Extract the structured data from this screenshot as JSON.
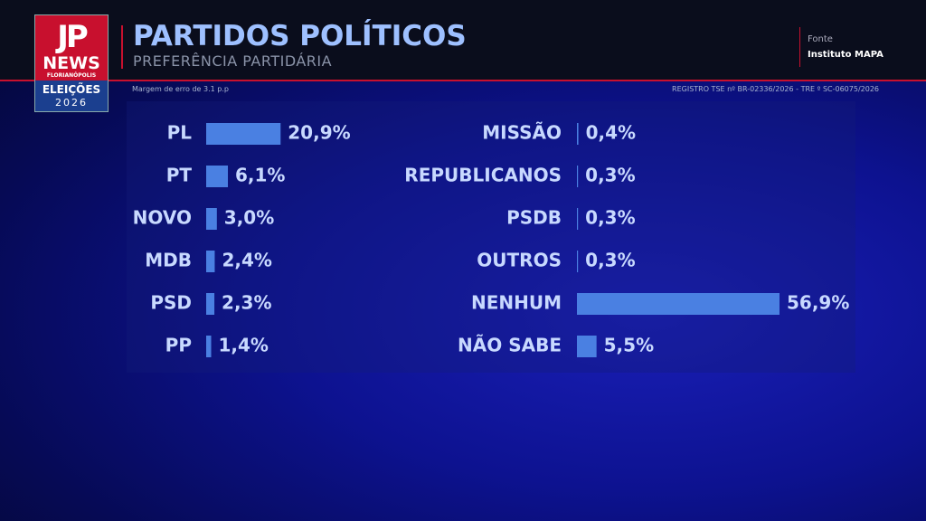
{
  "header": {
    "logo_mark": "JP",
    "logo_brand": "NEWS",
    "logo_city": "FLORIANÓPOLIS",
    "logo_event": "ELEIÇÕES",
    "logo_year": "2026",
    "title": "PARTIDOS POLÍTICOS",
    "subtitle": "PREFERÊNCIA PARTIDÁRIA",
    "source_label": "Fonte",
    "source": "Instituto MAPA",
    "margin": "Margem de erro de 3.1 p.p",
    "registry": "REGISTRO TSE nº BR-02336/2026 - TRE º SC-06075/2026"
  },
  "chart_data": [
    {
      "type": "bar",
      "orientation": "horizontal",
      "color": "#4a80e2",
      "categories": [
        "PL",
        "PT",
        "NOVO",
        "MDB",
        "PSD",
        "PP"
      ],
      "values": [
        20.9,
        6.1,
        3.0,
        2.4,
        2.3,
        1.4
      ],
      "value_labels": [
        "20,9%",
        "6,1%",
        "3,0%",
        "2,4%",
        "2,3%",
        "1,4%"
      ]
    },
    {
      "type": "bar",
      "orientation": "horizontal",
      "color": "#4a80e2",
      "categories": [
        "MISSÃO",
        "REPUBLICANOS",
        "PSDB",
        "OUTROS",
        "NENHUM",
        "NÃO SABE"
      ],
      "values": [
        0.4,
        0.3,
        0.3,
        0.3,
        56.9,
        5.5
      ],
      "value_labels": [
        "0,4%",
        "0,3%",
        "0,3%",
        "0,3%",
        "56,9%",
        "5,5%"
      ]
    }
  ]
}
